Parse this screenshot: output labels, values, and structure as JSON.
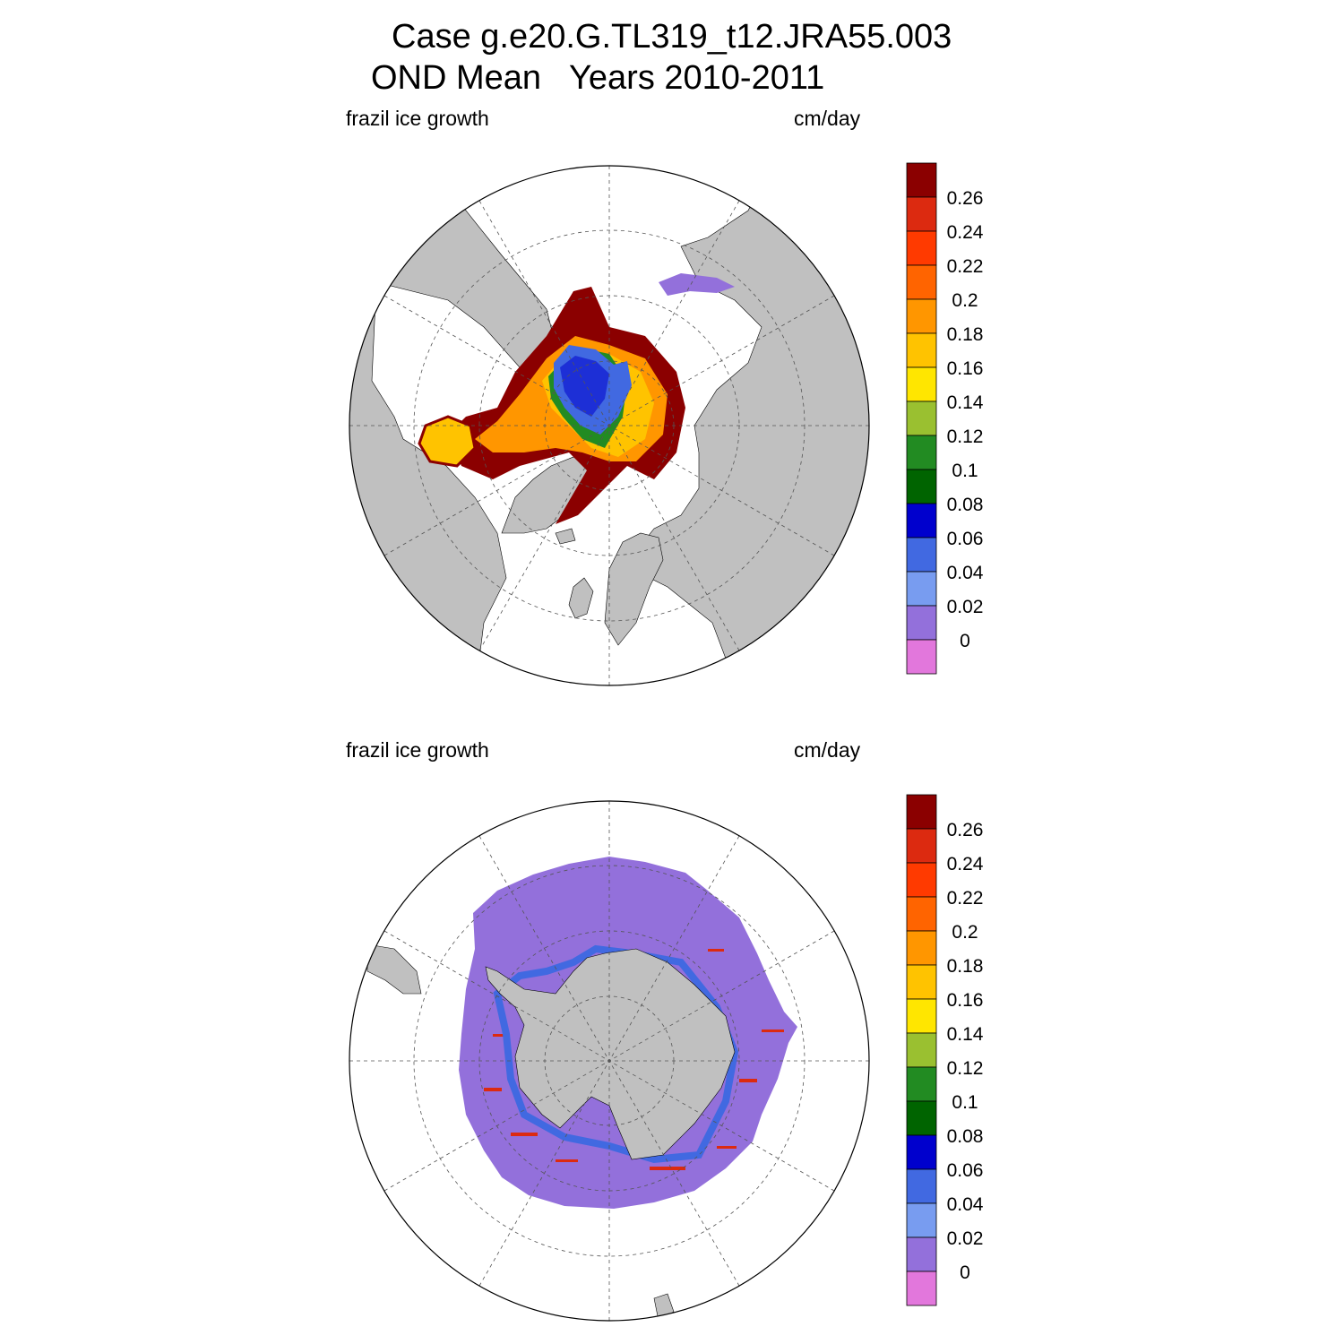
{
  "title": {
    "line1": "Case g.e20.G.TL319_t12.JRA55.003",
    "line2": "OND Mean   Years 2010-2011"
  },
  "panels": [
    {
      "id": "nh",
      "hemisphere": "Northern",
      "variable_label": "frazil ice growth",
      "units_label": "cm/day"
    },
    {
      "id": "sh",
      "hemisphere": "Southern",
      "variable_label": "frazil ice growth",
      "units_label": "cm/day"
    }
  ],
  "colorbar": {
    "labels": [
      "0.26",
      "0.24",
      "0.22",
      "0.2",
      "0.18",
      "0.16",
      "0.14",
      "0.12",
      "0.1",
      "0.08",
      "0.06",
      "0.04",
      "0.02",
      "0"
    ],
    "colors_top_to_bottom": [
      "#8b0000",
      "#dc2a10",
      "#ff3a00",
      "#ff6400",
      "#ff9600",
      "#ffc300",
      "#ffe600",
      "#9ac030",
      "#228b22",
      "#006400",
      "#0000cd",
      "#4169e1",
      "#789cf0",
      "#9370db",
      "#e277dc"
    ]
  },
  "colors": {
    "land": "#c0c0c0",
    "ocean": "#ffffff",
    "grid": "#555555",
    "ice_zero": "#9370db",
    "ice_low": "#4169e1",
    "ice_mid": "#0000cd"
  }
}
